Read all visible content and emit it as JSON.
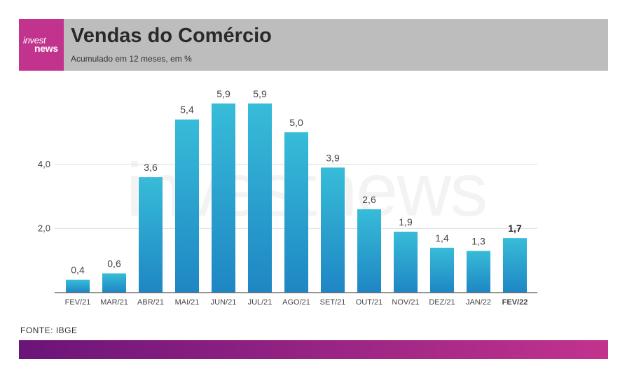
{
  "header": {
    "logo_line1": "invest",
    "logo_line2": "news",
    "title": "Vendas do Comércio",
    "subtitle": "Acumulado em 12 meses, em %"
  },
  "watermark": "investnews",
  "source": "FONTE: IBGE",
  "colors": {
    "header_bg": "#bdbdbd",
    "brand": "#c2338e",
    "bar_top": "#37bcd8",
    "bar_bottom": "#1e86c4",
    "footer_start": "#6b1479",
    "footer_end": "#c2338e"
  },
  "chart_data": {
    "type": "bar",
    "categories": [
      "FEV/21",
      "MAR/21",
      "ABR/21",
      "MAI/21",
      "JUN/21",
      "JUL/21",
      "AGO/21",
      "SET/21",
      "OUT/21",
      "NOV/21",
      "DEZ/21",
      "JAN/22",
      "FEV/22"
    ],
    "values": [
      0.4,
      0.6,
      3.6,
      5.4,
      5.9,
      5.9,
      5.0,
      3.9,
      2.6,
      1.9,
      1.4,
      1.3,
      1.7
    ],
    "value_labels": [
      "0,4",
      "0,6",
      "3,6",
      "5,4",
      "5,9",
      "5,9",
      "5,0",
      "3,9",
      "2,6",
      "1,9",
      "1,4",
      "1,3",
      "1,7"
    ],
    "highlight": "FEV/22",
    "yticks": [
      2.0,
      4.0
    ],
    "ytick_labels": [
      "2,0",
      "4,0"
    ],
    "ylim": [
      0,
      6.2
    ],
    "grid": true,
    "title": "Vendas do Comércio",
    "subtitle": "Acumulado em 12 meses, em %",
    "xlabel": "",
    "ylabel": ""
  }
}
